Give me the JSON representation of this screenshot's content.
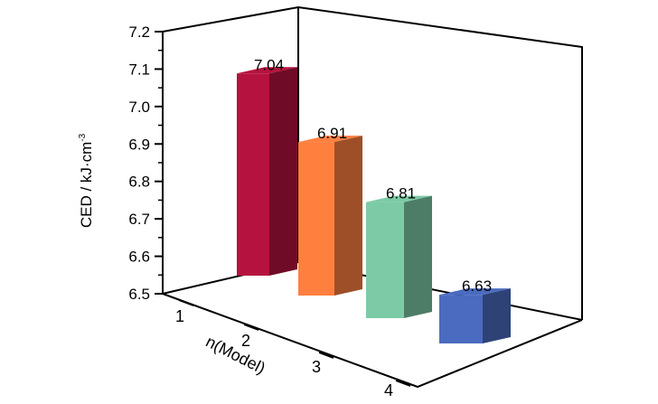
{
  "chart_data": {
    "type": "bar",
    "categories": [
      "1",
      "2",
      "3",
      "4"
    ],
    "values": [
      7.04,
      6.91,
      6.81,
      6.63
    ],
    "data_labels": [
      "7.04",
      "6.91",
      "6.81",
      "6.63"
    ],
    "title": "",
    "xlabel": "n(Model)",
    "ylabel": "CED / kJ·cm",
    "ylabel_superscript": "-3",
    "ylim": [
      6.5,
      7.2
    ],
    "yticks": [
      "6.5",
      "6.6",
      "6.7",
      "6.8",
      "6.9",
      "7.0",
      "7.1",
      "7.2"
    ],
    "grid": false,
    "style": "3d",
    "colors": [
      "#b5123f",
      "#ff7f3f",
      "#7ccaa6",
      "#4a6bbf"
    ]
  }
}
